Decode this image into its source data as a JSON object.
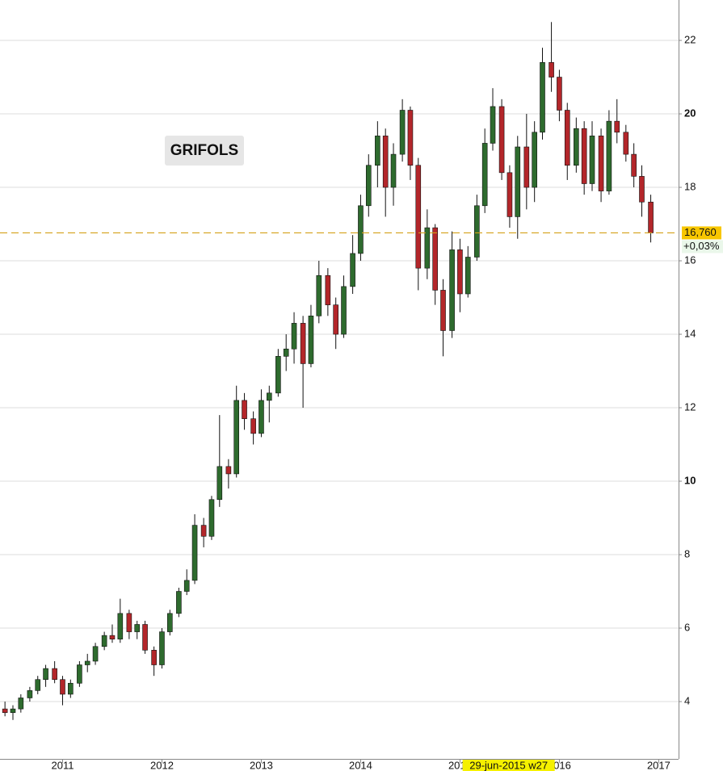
{
  "chart_data": {
    "type": "candlestick",
    "title": "GRIFOLS",
    "x": [
      2010.42,
      2010.5,
      2010.58,
      2010.67,
      2010.75,
      2010.83,
      2010.92,
      2011.0,
      2011.08,
      2011.17,
      2011.25,
      2011.33,
      2011.42,
      2011.5,
      2011.58,
      2011.67,
      2011.75,
      2011.83,
      2011.92,
      2012.0,
      2012.08,
      2012.17,
      2012.25,
      2012.33,
      2012.42,
      2012.5,
      2012.58,
      2012.67,
      2012.75,
      2012.83,
      2012.92,
      2013.0,
      2013.08,
      2013.17,
      2013.25,
      2013.33,
      2013.42,
      2013.5,
      2013.58,
      2013.67,
      2013.75,
      2013.83,
      2013.92,
      2014.0,
      2014.08,
      2014.17,
      2014.25,
      2014.33,
      2014.42,
      2014.5,
      2014.58,
      2014.67,
      2014.75,
      2014.83,
      2014.92,
      2015.0,
      2015.08,
      2015.17,
      2015.25,
      2015.33,
      2015.42,
      2015.5,
      2015.58,
      2015.67,
      2015.75,
      2015.83,
      2015.92,
      2016.0,
      2016.08,
      2016.17,
      2016.25,
      2016.33,
      2016.42,
      2016.5,
      2016.58,
      2016.67,
      2016.75,
      2016.83,
      2016.92
    ],
    "open": [
      3.8,
      3.7,
      3.8,
      4.1,
      4.3,
      4.6,
      4.9,
      4.6,
      4.2,
      4.5,
      5.0,
      5.1,
      5.5,
      5.8,
      5.7,
      6.4,
      5.9,
      6.1,
      5.4,
      5.0,
      5.9,
      6.4,
      7.0,
      7.3,
      8.8,
      8.5,
      9.5,
      10.4,
      10.2,
      12.2,
      11.7,
      11.3,
      12.2,
      12.4,
      13.4,
      13.6,
      14.3,
      13.2,
      14.5,
      15.6,
      14.8,
      14.0,
      15.3,
      16.2,
      17.5,
      18.6,
      19.4,
      18.0,
      18.9,
      20.1,
      18.6,
      15.8,
      16.9,
      15.2,
      14.1,
      16.3,
      15.1,
      16.1,
      17.5,
      19.2,
      20.2,
      18.4,
      17.2,
      19.1,
      18.0,
      19.5,
      21.4,
      21.0,
      20.1,
      18.6,
      19.6,
      18.1,
      19.4,
      17.9,
      19.8,
      19.5,
      18.9,
      18.3,
      17.6
    ],
    "high": [
      4.0,
      3.9,
      4.2,
      4.4,
      4.7,
      5.0,
      5.1,
      4.7,
      4.6,
      5.1,
      5.3,
      5.6,
      5.9,
      6.1,
      6.8,
      6.5,
      6.2,
      6.2,
      5.5,
      6.0,
      6.5,
      7.1,
      7.6,
      9.1,
      9.0,
      9.6,
      11.8,
      10.6,
      12.6,
      12.4,
      11.9,
      12.5,
      12.6,
      13.6,
      14.0,
      14.6,
      14.5,
      14.8,
      16.0,
      15.8,
      15.0,
      15.6,
      16.7,
      17.8,
      18.9,
      19.8,
      19.6,
      19.2,
      20.4,
      20.2,
      18.8,
      17.4,
      17.0,
      15.5,
      16.8,
      16.6,
      16.4,
      17.8,
      19.6,
      20.7,
      20.4,
      18.6,
      19.4,
      20.0,
      19.8,
      21.8,
      22.5,
      21.2,
      20.3,
      19.9,
      19.8,
      19.8,
      19.6,
      20.1,
      20.4,
      19.7,
      19.2,
      18.6,
      17.8
    ],
    "low": [
      3.6,
      3.5,
      3.7,
      4.0,
      4.2,
      4.4,
      4.5,
      3.9,
      4.1,
      4.4,
      4.8,
      5.0,
      5.4,
      5.6,
      5.6,
      5.7,
      5.7,
      5.3,
      4.7,
      4.9,
      5.8,
      6.3,
      6.9,
      7.2,
      8.2,
      8.4,
      9.3,
      9.8,
      10.1,
      11.4,
      11.0,
      11.2,
      11.6,
      12.3,
      13.0,
      13.2,
      12.0,
      13.1,
      14.3,
      14.5,
      13.6,
      13.9,
      15.1,
      16.0,
      17.2,
      18.0,
      17.2,
      17.5,
      18.7,
      18.2,
      15.2,
      15.5,
      14.8,
      13.4,
      13.9,
      14.6,
      15.0,
      16.0,
      17.3,
      19.0,
      18.2,
      16.9,
      16.6,
      17.4,
      17.6,
      19.3,
      20.6,
      19.8,
      18.2,
      18.4,
      17.8,
      17.9,
      17.6,
      17.8,
      19.2,
      18.7,
      18.0,
      17.2,
      16.5
    ],
    "close": [
      3.7,
      3.8,
      4.1,
      4.3,
      4.6,
      4.9,
      4.6,
      4.2,
      4.5,
      5.0,
      5.1,
      5.5,
      5.8,
      5.7,
      6.4,
      5.9,
      6.1,
      5.4,
      5.0,
      5.9,
      6.4,
      7.0,
      7.3,
      8.8,
      8.5,
      9.5,
      10.4,
      10.2,
      12.2,
      11.7,
      11.3,
      12.2,
      12.4,
      13.4,
      13.6,
      14.3,
      13.2,
      14.5,
      15.6,
      14.8,
      14.0,
      15.3,
      16.2,
      17.5,
      18.6,
      19.4,
      18.0,
      18.9,
      20.1,
      18.6,
      15.8,
      16.9,
      15.2,
      14.1,
      16.3,
      15.1,
      16.1,
      17.5,
      19.2,
      20.2,
      18.4,
      17.2,
      19.1,
      18.0,
      19.5,
      21.4,
      21.0,
      20.1,
      18.6,
      19.6,
      18.1,
      19.4,
      17.9,
      19.8,
      19.5,
      18.9,
      18.3,
      17.6,
      16.76
    ],
    "up_color": "#2e6b2e",
    "down_color": "#b3262a",
    "xlim": [
      2010.37,
      2017.2
    ],
    "xticks": [
      2011,
      2012,
      2013,
      2014,
      2015,
      2016,
      2017
    ],
    "ylim": [
      2.44,
      23.1
    ],
    "yticks": [
      4,
      6,
      8,
      10,
      12,
      14,
      16,
      18,
      20,
      22
    ],
    "grid": true,
    "last": {
      "value": 16.76,
      "label": "16,760"
    },
    "change": "+0,03%",
    "cursor": {
      "value": 2015.49,
      "label": "29-jun-2015 w27"
    }
  }
}
